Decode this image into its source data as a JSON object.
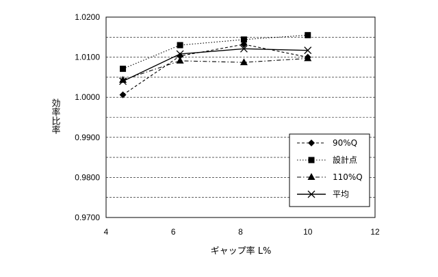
{
  "chart_data": {
    "type": "line",
    "title": "",
    "xlabel": "ギャップ率 L%",
    "ylabel": "効率比率",
    "xlim": [
      4,
      12
    ],
    "ylim": [
      0.97,
      1.02
    ],
    "x_ticks": [
      "4",
      "6",
      "8",
      "10",
      "12"
    ],
    "y_ticks": [
      "0.9700",
      "0.9800",
      "0.9900",
      "1.0000",
      "1.0100",
      "1.0200"
    ],
    "grid": "horizontal dashed",
    "legend_position": "lower-right",
    "series": [
      {
        "name": "90%Q",
        "marker": "diamond",
        "line": "dash",
        "x": [
          4.5,
          6.2,
          8.1,
          10.0
        ],
        "y": [
          1.0006,
          1.0103,
          1.0132,
          1.01
        ]
      },
      {
        "name": "設計点",
        "marker": "square",
        "line": "dot",
        "x": [
          4.5,
          6.2,
          8.1,
          10.0
        ],
        "y": [
          1.0071,
          1.013,
          1.0144,
          1.0155
        ]
      },
      {
        "name": "110%Q",
        "marker": "triangle",
        "line": "dashdot",
        "x": [
          4.5,
          6.2,
          8.1,
          10.0
        ],
        "y": [
          1.0043,
          1.0091,
          1.0087,
          1.0097
        ]
      },
      {
        "name": "平均",
        "marker": "x",
        "line": "solid",
        "x": [
          4.5,
          6.2,
          8.1,
          10.0
        ],
        "y": [
          1.004,
          1.0108,
          1.0121,
          1.0117
        ]
      }
    ]
  }
}
